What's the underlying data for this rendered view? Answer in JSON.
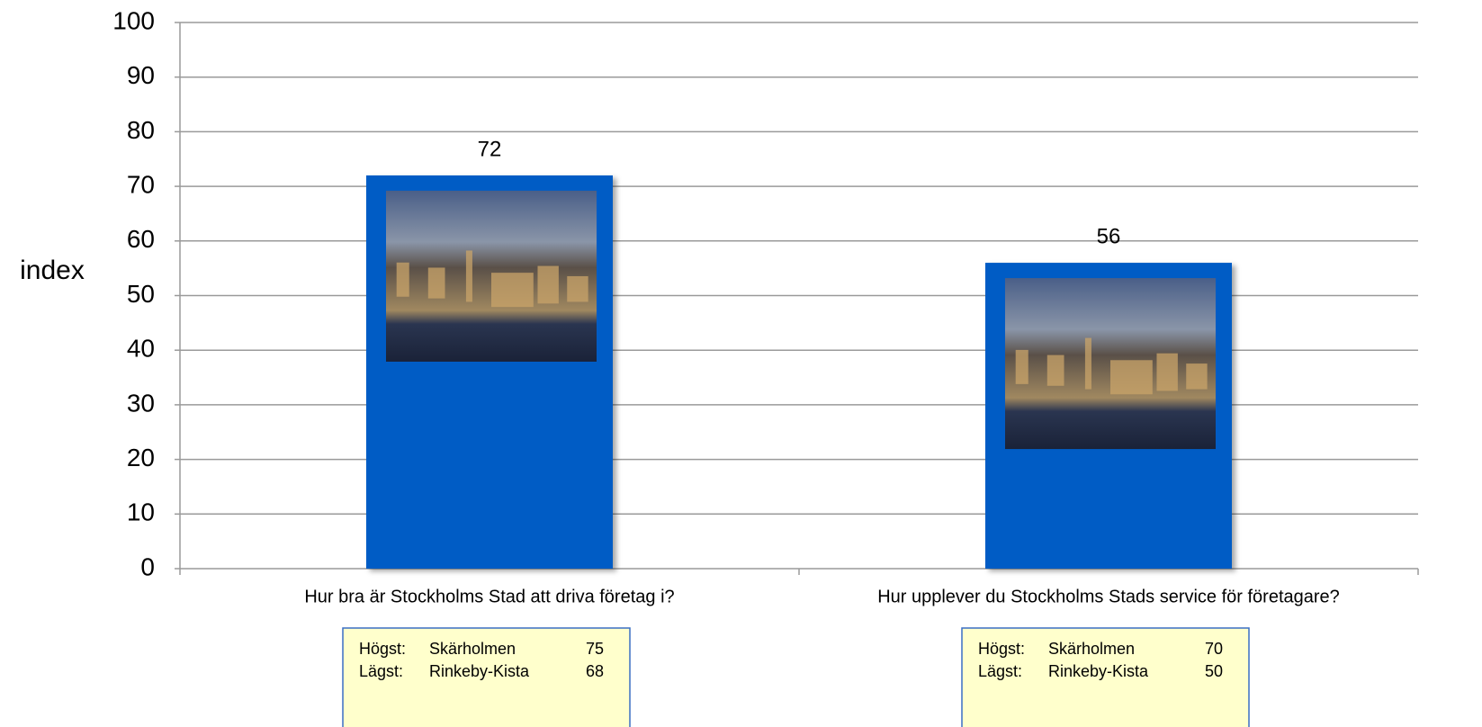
{
  "chart_data": {
    "type": "bar",
    "y_label": "index",
    "categories": [
      "Hur bra är Stockholms Stad att driva företag i?",
      "Hur upplever du Stockholms Stads service för företagare?"
    ],
    "values": [
      72,
      56
    ],
    "color": "#005cc5",
    "ylim": [
      0,
      100
    ],
    "yticks": [
      0,
      10,
      20,
      30,
      40,
      50,
      60,
      70,
      80,
      90,
      100
    ],
    "grid": true,
    "annotations": [
      {
        "rows": [
          {
            "label": "Högst:",
            "name": "Skärholmen",
            "value": 75
          },
          {
            "label": "Lägst:",
            "name": "Rinkeby-Kista",
            "value": 68
          }
        ]
      },
      {
        "rows": [
          {
            "label": "Högst:",
            "name": "Skärholmen",
            "value": 70
          },
          {
            "label": "Lägst:",
            "name": "Rinkeby-Kista",
            "value": 50
          }
        ]
      }
    ]
  }
}
